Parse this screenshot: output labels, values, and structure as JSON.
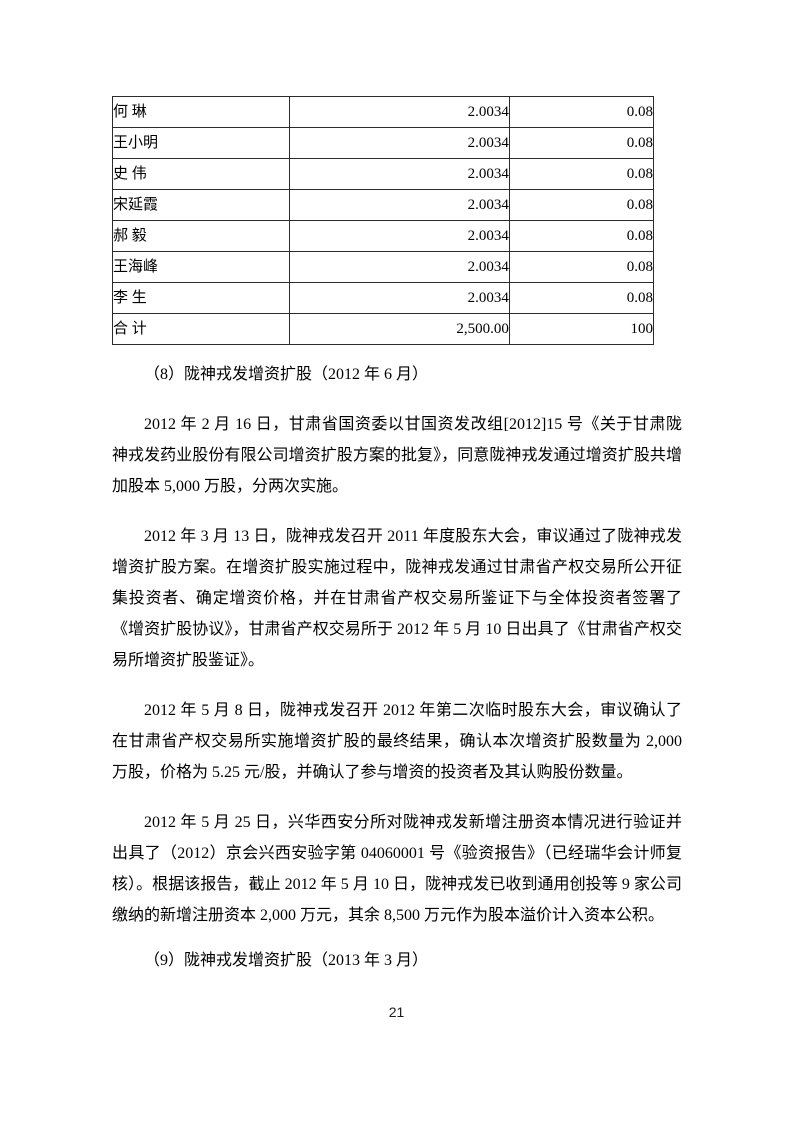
{
  "page": {
    "number": "21",
    "background_color": "#ffffff",
    "text_color": "#000000",
    "table_border_color": "#2b2b2b"
  },
  "table": {
    "rows": [
      {
        "name": "何 琳",
        "amount": "2.0034",
        "ratio": "0.08"
      },
      {
        "name": "王小明",
        "amount": "2.0034",
        "ratio": "0.08"
      },
      {
        "name": "史 伟",
        "amount": "2.0034",
        "ratio": "0.08"
      },
      {
        "name": "宋延霞",
        "amount": "2.0034",
        "ratio": "0.08"
      },
      {
        "name": "郝 毅",
        "amount": "2.0034",
        "ratio": "0.08"
      },
      {
        "name": "王海峰",
        "amount": "2.0034",
        "ratio": "0.08"
      },
      {
        "name": "李 生",
        "amount": "2.0034",
        "ratio": "0.08"
      },
      {
        "name": "合 计",
        "amount": "2,500.00",
        "ratio": "100"
      }
    ]
  },
  "content": {
    "heading_8": "（8）陇神戎发增资扩股（2012 年 6 月）",
    "paragraphs": [
      "2012 年 2 月 16 日，甘肃省国资委以甘国资发改组[2012]15 号《关于甘肃陇神戎发药业股份有限公司增资扩股方案的批复》，同意陇神戎发通过增资扩股共增加股本 5,000 万股，分两次实施。",
      "2012 年 3 月 13 日，陇神戎发召开 2011 年度股东大会，审议通过了陇神戎发增资扩股方案。在增资扩股实施过程中，陇神戎发通过甘肃省产权交易所公开征集投资者、确定增资价格，并在甘肃省产权交易所鉴证下与全体投资者签署了《增资扩股协议》，甘肃省产权交易所于 2012 年 5 月 10 日出具了《甘肃省产权交易所增资扩股鉴证》。",
      "2012 年 5 月 8 日，陇神戎发召开 2012 年第二次临时股东大会，审议确认了在甘肃省产权交易所实施增资扩股的最终结果，确认本次增资扩股数量为 2,000 万股，价格为 5.25 元/股，并确认了参与增资的投资者及其认购股份数量。",
      "2012 年 5 月 25 日，兴华西安分所对陇神戎发新增注册资本情况进行验证并出具了（2012）京会兴西安验字第 04060001 号《验资报告》（已经瑞华会计师复核）。根据该报告，截止 2012 年 5 月 10 日，陇神戎发已收到通用创投等 9 家公司缴纳的新增注册资本 2,000 万元，其余 8,500 万元作为股本溢价计入资本公积。"
    ],
    "heading_9": "（9）陇神戎发增资扩股（2013 年 3 月）"
  }
}
